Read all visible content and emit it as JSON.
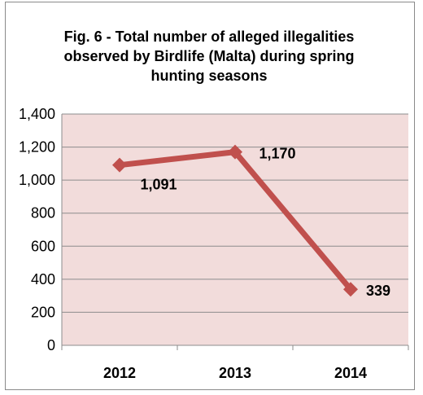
{
  "chart_data": {
    "type": "line",
    "title": "Fig. 6 - Total number of alleged illegalities observed by Birdlife (Malta) during spring hunting seasons",
    "categories": [
      "2012",
      "2013",
      "2014"
    ],
    "series": [
      {
        "values": [
          1091,
          1170,
          339
        ],
        "data_labels": [
          "1,091",
          "1,170",
          "339"
        ]
      }
    ],
    "ylim": [
      0,
      1400
    ],
    "y_ticks": [
      0,
      200,
      400,
      600,
      800,
      1000,
      1200,
      1400
    ],
    "y_tick_labels": [
      "0",
      "200",
      "400",
      "600",
      "800",
      "1,000",
      "1,200",
      "1,400"
    ],
    "xlabel": "",
    "ylabel": "",
    "grid": true,
    "colors": {
      "line": "#c0504d",
      "plot_background": "#f2dcdb",
      "gridline": "#8c8c8c"
    }
  }
}
